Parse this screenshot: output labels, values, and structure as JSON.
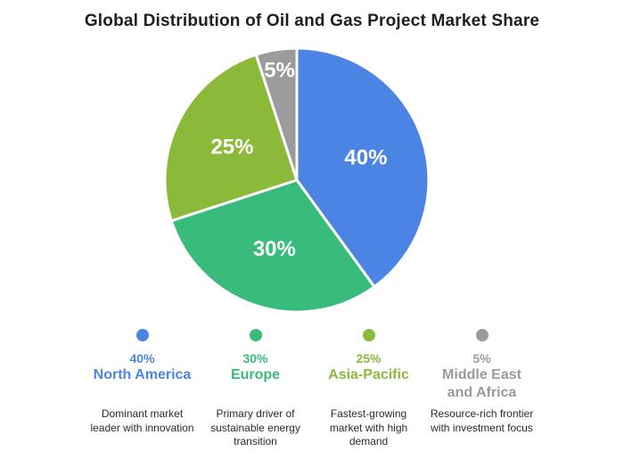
{
  "title": "Global Distribution of Oil and Gas Project Market Share",
  "chart_data": {
    "type": "pie",
    "title": "Global Distribution of Oil and Gas Project Market Share",
    "start_angle_deg": 0,
    "direction": "clockwise",
    "slice_border_color": "#ffffff",
    "label_color": "#ffffff",
    "legend_position": "bottom",
    "background": "#ffffff",
    "slices": [
      {
        "label": "North America",
        "pct_label": "40%",
        "value": 40,
        "color": "#4C84E3",
        "label_r": 0.55,
        "description": "Dominant market leader with innovation"
      },
      {
        "label": "Europe",
        "pct_label": "30%",
        "value": 30,
        "color": "#39BB7C",
        "label_r": 0.55,
        "description": "Primary driver of sustainable energy transition"
      },
      {
        "label": "Asia-Pacific",
        "pct_label": "25%",
        "value": 25,
        "color": "#8BBA3B",
        "label_r": 0.55,
        "description": "Fastest-growing market with high demand"
      },
      {
        "label": "Middle East and Africa",
        "pct_label": "5%",
        "value": 5,
        "color": "#9B9B9B",
        "label_r": 0.84,
        "description": "Resource-rich frontier with investment focus"
      }
    ]
  }
}
